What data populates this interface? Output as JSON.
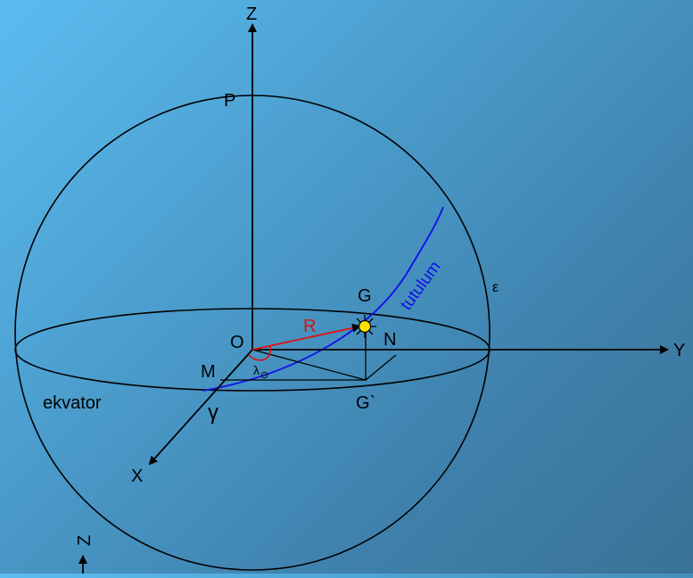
{
  "labels": {
    "z_axis": "Z",
    "pole": "P",
    "origin": "O",
    "y_axis": "Y",
    "x_axis": "X",
    "point_g": "G",
    "point_n": "N",
    "point_m": "M",
    "point_g_prime": "G`",
    "radius": "R",
    "longitude": "λ",
    "sun_symbol": "⊙",
    "equator": "ekvator",
    "gamma": "γ",
    "epsilon": "ε",
    "ecliptic": "tutulum",
    "z_axis_bottom": "Z"
  },
  "colors": {
    "sphere": "#000000",
    "ecliptic": "#1010e8",
    "radius": "#e01010",
    "sun": "#ffe000"
  }
}
